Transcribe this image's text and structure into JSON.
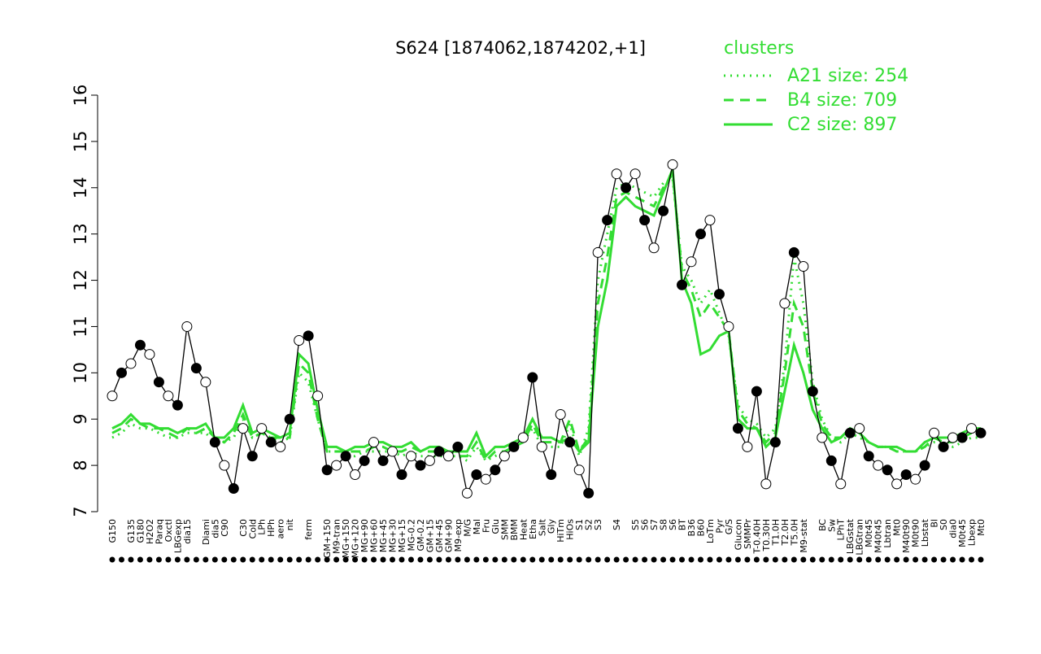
{
  "chart_data": {
    "type": "line",
    "title": "S624 [1874062,1874202,+1]",
    "legend_title": "clusters",
    "legend_position": "top right",
    "ylim": [
      7,
      16
    ],
    "yticks": [
      7,
      8,
      9,
      10,
      11,
      12,
      13,
      14,
      15,
      16
    ],
    "categories": [
      "G150",
      null,
      "G135",
      "G180",
      "H2O2",
      "Paraq",
      "Oxctl",
      "LBGexp",
      "dia15",
      null,
      "Diami",
      "dia5",
      "C90",
      null,
      "C30",
      "Cold",
      "LPh",
      "HPh",
      "aero",
      "nit",
      null,
      "ferm",
      null,
      "GM+150",
      "M9-tran",
      "MG+150",
      "MG+120",
      "MG+90",
      "MG+60",
      "MG+45",
      "MG+30",
      "MG+15",
      "MG-0.2",
      "GM-0.2",
      "GM+15",
      "GM+45",
      "GM+90",
      "M9-exp",
      "M/G",
      "Mal",
      "Fru",
      "Glu",
      "SMM",
      "BMM",
      "Heat",
      "Etha",
      "Salt",
      "Gly",
      "HiTm",
      "HiOs",
      "S1",
      "S2",
      "S3",
      null,
      "S4",
      null,
      "S5",
      "S6",
      "S7",
      "S8",
      "S6",
      "BT",
      "B36",
      "B60",
      "LoTm",
      "Pyr",
      "G/S",
      "Glucon",
      "SMMPr",
      "T-0.40H",
      "T0.30H",
      "T1.0H",
      "T2.0H",
      "T5.0H",
      "M9-stat",
      null,
      "BC",
      "Sw",
      "LPhT",
      "LBGstat",
      "LBGtran",
      "M0t45",
      "M40t45",
      "Lbtran",
      "Mt0",
      "M40t90",
      "M0t90",
      "Lbstat",
      "Bl",
      "S0",
      "dia0",
      "M0t45",
      "Lbexp",
      "Mt0"
    ],
    "values": [
      9.5,
      10.0,
      10.2,
      10.6,
      10.4,
      9.8,
      9.5,
      9.3,
      11.0,
      10.1,
      9.8,
      8.5,
      8.0,
      7.5,
      8.8,
      8.2,
      8.8,
      8.5,
      8.4,
      9.0,
      10.7,
      10.8,
      9.5,
      7.9,
      8.0,
      8.2,
      7.8,
      8.1,
      8.5,
      8.1,
      8.3,
      7.8,
      8.2,
      8.0,
      8.1,
      8.3,
      8.2,
      8.4,
      7.4,
      7.8,
      7.7,
      7.9,
      8.2,
      8.4,
      8.6,
      9.9,
      8.4,
      7.8,
      9.1,
      8.5,
      7.9,
      7.4,
      12.6,
      13.3,
      14.3,
      14.0,
      14.3,
      13.3,
      12.7,
      13.5,
      14.5,
      11.9,
      12.4,
      13.0,
      13.3,
      11.7,
      11.0,
      8.8,
      8.4,
      9.6,
      7.6,
      8.5,
      11.5,
      12.6,
      12.3,
      9.6,
      8.6,
      8.1,
      7.6,
      8.7,
      8.8,
      8.2,
      8.0,
      7.9,
      7.6,
      7.8,
      7.7,
      8.0,
      8.7,
      8.4,
      8.6,
      8.6,
      8.8,
      8.7
    ],
    "color": "#000000",
    "series": [
      {
        "name": "A21 size: 254",
        "color": "#33dd33",
        "dash": "dotted",
        "values": [
          8.6,
          8.7,
          8.9,
          8.8,
          8.8,
          8.7,
          8.6,
          8.6,
          8.7,
          8.7,
          8.7,
          8.5,
          8.5,
          8.6,
          9.0,
          8.6,
          8.7,
          8.6,
          8.5,
          8.6,
          10.0,
          9.8,
          9.0,
          8.3,
          8.3,
          8.2,
          8.2,
          8.3,
          8.3,
          8.3,
          8.3,
          8.2,
          8.3,
          8.2,
          8.2,
          8.2,
          8.2,
          8.2,
          8.1,
          8.4,
          8.1,
          8.2,
          8.3,
          8.4,
          8.5,
          8.8,
          8.4,
          8.4,
          8.4,
          8.9,
          8.2,
          8.8,
          12.0,
          13.0,
          14.0,
          14.1,
          14.0,
          13.9,
          13.8,
          14.1,
          14.2,
          12.3,
          12.0,
          11.5,
          11.8,
          11.3,
          10.8,
          9.3,
          9.0,
          8.9,
          8.6,
          8.8,
          10.2,
          12.5,
          11.5,
          9.8,
          9.0,
          8.6,
          8.5,
          8.7,
          8.6,
          8.5,
          8.4,
          8.4,
          8.3,
          8.3,
          8.3,
          8.4,
          8.5,
          8.5,
          8.4,
          8.5,
          8.6,
          8.6
        ]
      },
      {
        "name": "B4 size: 709",
        "color": "#33dd33",
        "dash": "dashed",
        "values": [
          8.7,
          8.8,
          9.0,
          8.9,
          8.8,
          8.8,
          8.7,
          8.6,
          8.8,
          8.7,
          8.8,
          8.6,
          8.5,
          8.7,
          9.1,
          8.6,
          8.7,
          8.6,
          8.6,
          8.6,
          10.2,
          10.0,
          9.0,
          8.3,
          8.3,
          8.3,
          8.3,
          8.3,
          8.4,
          8.4,
          8.3,
          8.3,
          8.4,
          8.3,
          8.3,
          8.3,
          8.3,
          8.2,
          8.2,
          8.5,
          8.1,
          8.3,
          8.3,
          8.4,
          8.5,
          8.9,
          8.5,
          8.5,
          8.5,
          9.0,
          8.3,
          8.6,
          11.5,
          12.5,
          13.8,
          13.9,
          13.8,
          13.7,
          13.6,
          14.0,
          14.3,
          12.2,
          11.8,
          11.2,
          11.5,
          11.2,
          10.9,
          9.2,
          8.9,
          8.8,
          8.5,
          8.7,
          10.0,
          11.5,
          11.0,
          9.6,
          8.9,
          8.6,
          8.6,
          8.8,
          8.7,
          8.5,
          8.4,
          8.4,
          8.3,
          8.3,
          8.3,
          8.4,
          8.6,
          8.5,
          8.5,
          8.6,
          8.7,
          8.7
        ]
      },
      {
        "name": "C2 size: 897",
        "color": "#33dd33",
        "dash": "solid",
        "values": [
          8.8,
          8.9,
          9.1,
          8.9,
          8.9,
          8.8,
          8.8,
          8.7,
          8.8,
          8.8,
          8.9,
          8.6,
          8.6,
          8.8,
          9.3,
          8.7,
          8.8,
          8.7,
          8.6,
          8.7,
          10.4,
          10.2,
          9.2,
          8.4,
          8.4,
          8.3,
          8.4,
          8.4,
          8.5,
          8.5,
          8.4,
          8.4,
          8.5,
          8.3,
          8.4,
          8.4,
          8.3,
          8.3,
          8.3,
          8.7,
          8.2,
          8.4,
          8.4,
          8.5,
          8.6,
          9.0,
          8.6,
          8.6,
          8.5,
          8.6,
          8.3,
          8.5,
          11.0,
          12.0,
          13.6,
          13.8,
          13.6,
          13.5,
          13.4,
          13.9,
          14.4,
          12.0,
          11.5,
          10.4,
          10.5,
          10.8,
          10.9,
          9.0,
          8.8,
          8.8,
          8.4,
          8.6,
          9.6,
          10.6,
          10.0,
          9.2,
          8.8,
          8.5,
          8.6,
          8.8,
          8.7,
          8.5,
          8.4,
          8.4,
          8.4,
          8.3,
          8.3,
          8.5,
          8.6,
          8.6,
          8.6,
          8.7,
          8.8,
          8.8
        ]
      }
    ]
  }
}
